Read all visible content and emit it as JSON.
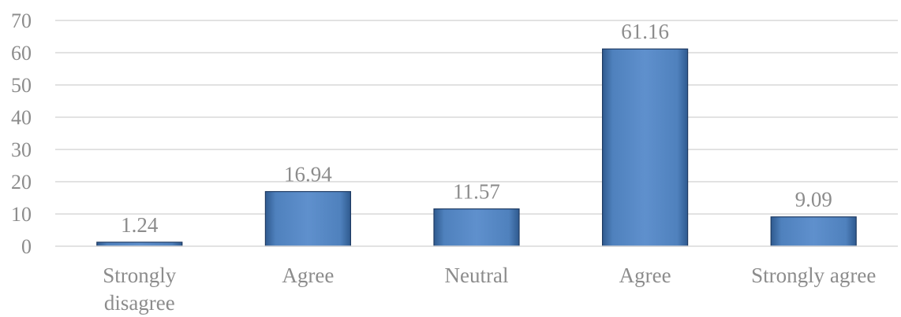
{
  "chart_data": {
    "type": "bar",
    "title": "",
    "xlabel": "",
    "ylabel": "",
    "ylim": [
      0,
      70
    ],
    "yticks": [
      "0",
      "10",
      "20",
      "30",
      "40",
      "50",
      "60",
      "70"
    ],
    "grid": true,
    "legend": "none",
    "categories": [
      [
        "Strongly",
        "disagree"
      ],
      [
        "Agree"
      ],
      [
        "Neutral"
      ],
      [
        "Agree"
      ],
      [
        "Strongly agree"
      ]
    ],
    "values": [
      1.24,
      16.94,
      11.57,
      61.16,
      9.09
    ],
    "data_labels": [
      "1.24",
      "16.94",
      "11.57",
      "61.16",
      "9.09"
    ],
    "colors": {
      "bar": "#4f81bd",
      "bar_light": "#6b9bd6",
      "bar_dark": "#2f5a8f",
      "bar_edge": "#1f3b63",
      "text": "#8c8c8c",
      "grid": "#d9d9d9"
    }
  }
}
